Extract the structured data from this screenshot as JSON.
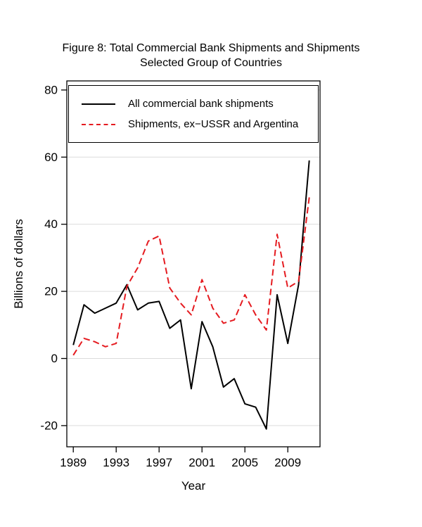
{
  "figure": {
    "title_line1": "Figure 8: Total Commercial Bank Shipments and Shipments",
    "title_line2": "Selected Group of Countries"
  },
  "chart_data": {
    "type": "line",
    "title": "Figure 8: Total Commercial Bank Shipments and Shipments Selected Group of Countries",
    "xlabel": "Year",
    "ylabel": "Billions of dollars",
    "x": [
      1989,
      1990,
      1991,
      1992,
      1993,
      1994,
      1995,
      1996,
      1997,
      1998,
      1999,
      2000,
      2001,
      2002,
      2003,
      2004,
      2005,
      2006,
      2007,
      2008,
      2009,
      2010,
      2011
    ],
    "series": [
      {
        "name": "All commercial bank shipments",
        "color": "#000000",
        "dash": "solid",
        "values": [
          4,
          16,
          13.5,
          15,
          16.5,
          22,
          14.5,
          16.5,
          17,
          9,
          11.5,
          -9,
          11,
          3.5,
          -8.5,
          -6,
          -13.5,
          -14.5,
          -21,
          19,
          4.5,
          22,
          59
        ]
      },
      {
        "name": "Shipments, ex−USSR and Argentina",
        "color": "#e51b20",
        "dash": "dashed",
        "values": [
          1,
          6,
          5,
          3.5,
          4.5,
          21.5,
          27,
          35,
          36.5,
          21,
          16.5,
          13,
          23.5,
          15,
          10.5,
          11.5,
          19,
          13,
          8.5,
          37,
          21,
          23,
          48
        ]
      }
    ],
    "yticks": [
      -20,
      0,
      20,
      40,
      60,
      80
    ],
    "xticks": [
      1989,
      1993,
      1997,
      2001,
      2005,
      2009
    ],
    "ylim": [
      -26.3,
      82.7
    ],
    "xlim": [
      1988.4,
      2012.0
    ],
    "grid": "horizontal",
    "gridline_color": "#dcdcdc",
    "legend_position": "top-left-inside"
  }
}
